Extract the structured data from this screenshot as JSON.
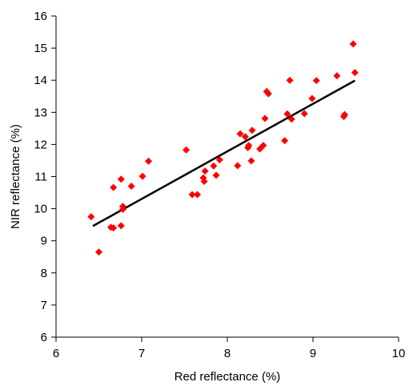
{
  "chart_data": {
    "type": "scatter",
    "title": "",
    "xlabel": "Red reflectance (%)",
    "ylabel": "NIR reflectance (%)",
    "xlim": [
      6,
      10
    ],
    "ylim": [
      6,
      16
    ],
    "x_ticks": [
      "6",
      "7",
      "8",
      "9",
      "10"
    ],
    "y_ticks": [
      "6",
      "7",
      "8",
      "9",
      "10",
      "11",
      "12",
      "13",
      "14",
      "15",
      "16"
    ],
    "grid": false,
    "legend": "none",
    "marker": "diamond",
    "marker_color": "#ff0000",
    "trendline_color": "#000000",
    "series": [
      {
        "points": [
          [
            6.41,
            9.75
          ],
          [
            6.5,
            8.65
          ],
          [
            6.64,
            9.42
          ],
          [
            6.67,
            9.4
          ],
          [
            6.67,
            10.66
          ],
          [
            6.76,
            9.47
          ],
          [
            6.76,
            10.92
          ],
          [
            6.78,
            9.98
          ],
          [
            6.78,
            10.07
          ],
          [
            6.88,
            10.7
          ],
          [
            7.01,
            11.01
          ],
          [
            7.08,
            11.48
          ],
          [
            7.52,
            11.83
          ],
          [
            7.59,
            10.44
          ],
          [
            7.65,
            10.44
          ],
          [
            7.72,
            10.96
          ],
          [
            7.73,
            10.85
          ],
          [
            7.74,
            11.17
          ],
          [
            7.84,
            11.33
          ],
          [
            7.87,
            11.04
          ],
          [
            7.91,
            11.52
          ],
          [
            8.12,
            11.34
          ],
          [
            8.15,
            12.33
          ],
          [
            8.21,
            12.24
          ],
          [
            8.24,
            11.9
          ],
          [
            8.25,
            11.97
          ],
          [
            8.28,
            11.49
          ],
          [
            8.29,
            12.44
          ],
          [
            8.38,
            11.86
          ],
          [
            8.42,
            11.97
          ],
          [
            8.44,
            12.81
          ],
          [
            8.46,
            13.65
          ],
          [
            8.48,
            13.58
          ],
          [
            8.67,
            12.12
          ],
          [
            8.7,
            12.95
          ],
          [
            8.73,
            14.0
          ],
          [
            8.75,
            12.79
          ],
          [
            8.9,
            12.96
          ],
          [
            8.99,
            13.43
          ],
          [
            9.04,
            13.99
          ],
          [
            9.28,
            14.14
          ],
          [
            9.36,
            12.87
          ],
          [
            9.37,
            12.93
          ],
          [
            9.47,
            15.13
          ],
          [
            9.49,
            14.24
          ]
        ]
      }
    ],
    "trendline": {
      "x": [
        6.43,
        9.49
      ],
      "y": [
        9.46,
        13.99
      ]
    }
  }
}
